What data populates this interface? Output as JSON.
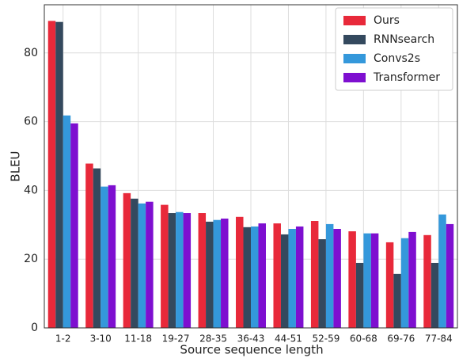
{
  "chart_data": {
    "type": "bar",
    "categories": [
      "1-2",
      "3-10",
      "11-18",
      "19-27",
      "28-35",
      "36-43",
      "44-51",
      "52-59",
      "60-68",
      "69-76",
      "77-84"
    ],
    "series": [
      {
        "name": "Ours",
        "color": "#e8293a",
        "values": [
          89.3,
          47.8,
          39.2,
          35.8,
          33.4,
          32.3,
          30.4,
          31.1,
          28.1,
          24.9,
          27.0
        ]
      },
      {
        "name": "RNNsearch",
        "color": "#34495e",
        "values": [
          89.0,
          46.4,
          37.6,
          33.4,
          30.9,
          29.3,
          27.2,
          25.8,
          18.9,
          15.7,
          18.9
        ]
      },
      {
        "name": "Convs2s",
        "color": "#3498db",
        "values": [
          61.8,
          41.1,
          36.2,
          33.7,
          31.4,
          29.5,
          28.8,
          30.2,
          27.5,
          26.1,
          33.0
        ]
      },
      {
        "name": "Transformer",
        "color": "#7e0fd0",
        "values": [
          59.5,
          41.5,
          36.7,
          33.4,
          31.8,
          30.4,
          29.5,
          28.8,
          27.5,
          27.9,
          30.2
        ]
      }
    ],
    "x_label": "Source sequence length",
    "y_label": "BLEU",
    "ylim": [
      0,
      94
    ],
    "yticks": [
      0,
      20,
      40,
      60,
      80
    ],
    "grid": true,
    "legend": "upper right"
  }
}
